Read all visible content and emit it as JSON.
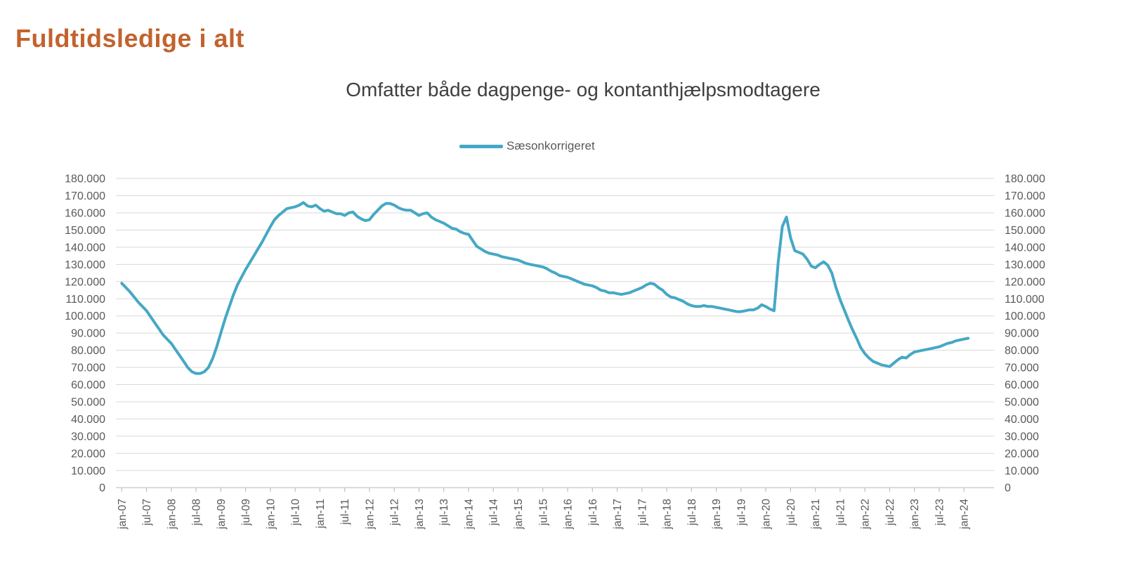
{
  "page": {
    "title": "Fuldtidsledige i alt"
  },
  "colors": {
    "title": "#C2632E",
    "line": "#45A8C5",
    "subtitle": "#3F3F3F",
    "legend_text": "#595959",
    "axis_label": "#595959",
    "gridline": "#D9D9D9",
    "axis_line": "#BFBFBF"
  },
  "chart_data": {
    "type": "line",
    "title": "Omfatter både dagpenge- og kontanthjælpsmodtagere",
    "legend_position": "top-center",
    "grid": "horizontal",
    "y_axis_sides": "both",
    "ylim": [
      0,
      180000
    ],
    "y_step": 10000,
    "y_tick_labels": [
      "180.000",
      "170.000",
      "160.000",
      "150.000",
      "140.000",
      "130.000",
      "120.000",
      "110.000",
      "100.000",
      "90.000",
      "80.000",
      "70.000",
      "60.000",
      "50.000",
      "40.000",
      "30.000",
      "20.000",
      "10.000",
      "0"
    ],
    "x_tick_labels": [
      "jan-07",
      "jul-07",
      "jan-08",
      "jul-08",
      "jan-09",
      "jul-09",
      "jan-10",
      "jul-10",
      "jan-11",
      "jul-11",
      "jan-12",
      "jul-12",
      "jan-13",
      "jul-13",
      "jan-14",
      "jul-14",
      "jan-15",
      "jul-15",
      "jan-16",
      "jul-16",
      "jan-17",
      "jul-17",
      "jan-18",
      "jul-18",
      "jan-19",
      "jul-19",
      "jan-20",
      "jul-20",
      "jan-21",
      "jul-21",
      "jan-22",
      "jul-22",
      "jan-23",
      "jul-23",
      "jan-24"
    ],
    "x_tick_every_months": 6,
    "series": [
      {
        "name": "Sæsonkorrigeret",
        "start": "2007-01",
        "frequency": "monthly",
        "values": [
          119000,
          116500,
          114000,
          111000,
          108000,
          105500,
          103000,
          99500,
          96000,
          92500,
          89000,
          86500,
          84000,
          80500,
          77000,
          73500,
          70000,
          67500,
          66500,
          66500,
          67500,
          70000,
          75000,
          82000,
          90000,
          98000,
          105000,
          112000,
          118000,
          122500,
          127000,
          131000,
          135000,
          139000,
          143000,
          147500,
          152000,
          156000,
          158500,
          160500,
          162500,
          163000,
          163500,
          164500,
          166000,
          164000,
          163500,
          164500,
          162500,
          161000,
          161500,
          160500,
          159500,
          159500,
          158500,
          160000,
          160500,
          158000,
          156500,
          155500,
          156000,
          159000,
          161500,
          164000,
          165500,
          165500,
          164500,
          163000,
          162000,
          161500,
          161500,
          160000,
          158500,
          159500,
          160000,
          157500,
          156000,
          155000,
          154000,
          152500,
          151000,
          150500,
          149000,
          148000,
          147500,
          144000,
          140500,
          139000,
          137500,
          136500,
          136000,
          135500,
          134500,
          134000,
          133500,
          133000,
          132500,
          131500,
          130500,
          130000,
          129500,
          129000,
          128500,
          127500,
          126000,
          125000,
          123500,
          123000,
          122500,
          121500,
          120500,
          119500,
          118500,
          118000,
          117500,
          116500,
          115000,
          114500,
          113500,
          113500,
          113000,
          112500,
          113000,
          113500,
          114500,
          115500,
          116500,
          118000,
          119000,
          118500,
          116500,
          115000,
          112500,
          111000,
          110500,
          109500,
          108500,
          107000,
          106000,
          105500,
          105500,
          106000,
          105500,
          105500,
          105000,
          104500,
          104000,
          103500,
          103000,
          102500,
          102500,
          103000,
          103500,
          103500,
          104500,
          106500,
          105500,
          104000,
          103000,
          131000,
          152000,
          157500,
          145500,
          138000,
          137000,
          136000,
          133000,
          129000,
          128000,
          130000,
          131500,
          129500,
          125000,
          116500,
          109500,
          103500,
          97500,
          92000,
          87000,
          81500,
          78000,
          75500,
          73500,
          72500,
          71500,
          71000,
          70500,
          72500,
          74500,
          76000,
          75500,
          77500,
          79000,
          79500,
          80000,
          80500,
          81000,
          81500,
          82000,
          83000,
          84000,
          84500,
          85500,
          86000,
          86500,
          87000
        ]
      }
    ]
  }
}
